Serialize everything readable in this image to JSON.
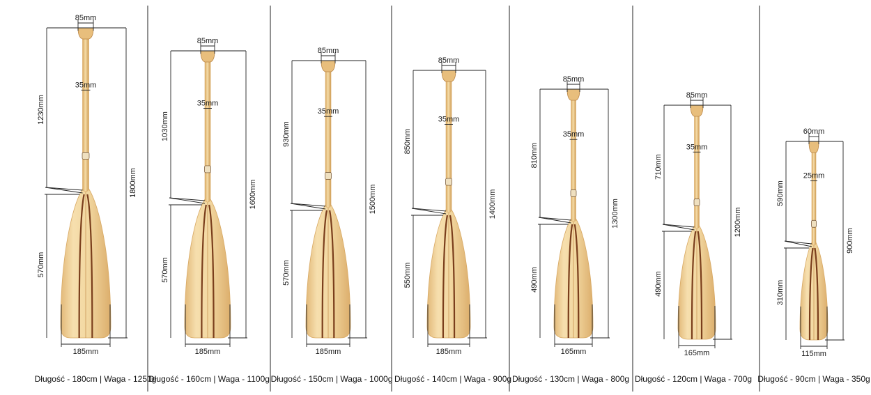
{
  "colors": {
    "wood_light": "#f4dcaa",
    "wood_mid": "#e9c887",
    "wood_edge": "#d8a964",
    "strip_dark": "#7a3e1c",
    "line": "#222222"
  },
  "paddles": [
    {
      "id": "p180",
      "grip_width": "85mm",
      "shaft_diameter": "35mm",
      "shaft_length": "1230mm",
      "blade_length": "570mm",
      "total_length": "1800mm",
      "blade_width": "185mm",
      "caption": "Długość - 180cm | Waga - 1250g"
    },
    {
      "id": "p160",
      "grip_width": "85mm",
      "shaft_diameter": "35mm",
      "shaft_length": "1030mm",
      "blade_length": "570mm",
      "total_length": "1600mm",
      "blade_width": "185mm",
      "caption": "Długość - 160cm | Waga - 1100g"
    },
    {
      "id": "p150",
      "grip_width": "85mm",
      "shaft_diameter": "35mm",
      "shaft_length": "930mm",
      "blade_length": "570mm",
      "total_length": "1500mm",
      "blade_width": "185mm",
      "caption": "Długość - 150cm | Waga - 1000g"
    },
    {
      "id": "p140",
      "grip_width": "85mm",
      "shaft_diameter": "35mm",
      "shaft_length": "850mm",
      "blade_length": "550mm",
      "total_length": "1400mm",
      "blade_width": "185mm",
      "caption": "Długość - 140cm | Waga - 900g"
    },
    {
      "id": "p130",
      "grip_width": "85mm",
      "shaft_diameter": "35mm",
      "shaft_length": "810mm",
      "blade_length": "490mm",
      "total_length": "1300mm",
      "blade_width": "165mm",
      "caption": "Długość - 130cm | Waga - 800g"
    },
    {
      "id": "p120",
      "grip_width": "85mm",
      "shaft_diameter": "35mm",
      "shaft_length": "710mm",
      "blade_length": "490mm",
      "total_length": "1200mm",
      "blade_width": "165mm",
      "caption": "Długość - 120cm | Waga - 700g"
    },
    {
      "id": "p90",
      "grip_width": "60mm",
      "shaft_diameter": "25mm",
      "shaft_length": "590mm",
      "blade_length": "310mm",
      "total_length": "900mm",
      "blade_width": "115mm",
      "caption": "Długość - 90cm | Waga - 350g"
    }
  ]
}
